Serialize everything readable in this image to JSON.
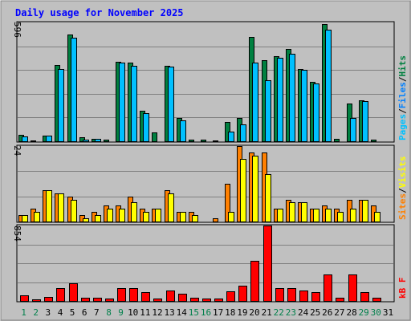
{
  "title": "Daily usage for November 2025",
  "colors": {
    "background": "#c0c0c0",
    "frame_light": "#ffffff",
    "frame_dark": "#808080",
    "gridline": "#808080",
    "title": "#0000ff",
    "hits": "#008040",
    "files": "#00c0ff",
    "pages": "#00c0ff",
    "sites": "#ff8000",
    "visits": "#ffff00",
    "kbytes": "#ff0000",
    "weekday_label": "#000000",
    "weekend_label": "#00804b"
  },
  "legend": {
    "top": {
      "pages": "Pages",
      "sep1": "/",
      "files": "Files",
      "sep2": "/",
      "hits": "Hits"
    },
    "middle": {
      "sites": "Sites",
      "sep": "/",
      "visits": "Visits"
    },
    "bottom": {
      "kbytes": "kB F"
    }
  },
  "chart_data": {
    "type": "bar",
    "title": "Daily usage for November 2025",
    "categories": [
      "1",
      "2",
      "3",
      "4",
      "5",
      "6",
      "7",
      "8",
      "9",
      "10",
      "11",
      "12",
      "13",
      "14",
      "15",
      "16",
      "17",
      "18",
      "19",
      "20",
      "21",
      "22",
      "23",
      "24",
      "25",
      "26",
      "27",
      "28",
      "29",
      "30",
      "31"
    ],
    "weekend_days": [
      "1",
      "2",
      "8",
      "9",
      "15",
      "16",
      "22",
      "23",
      "29",
      "30"
    ],
    "panels": [
      {
        "name": "top",
        "axis_max_label": "596",
        "ymax": 596,
        "series": [
          {
            "name": "Hits",
            "color": "#008040",
            "values": [
              32,
              4,
              28,
              384,
              535,
              20,
              14,
              8,
              400,
              395,
              153,
              45,
              380,
              118,
              7,
              7,
              4,
              95,
              115,
              525,
              405,
              428,
              465,
              362,
              298,
              586,
              14,
              188,
              205,
              7,
              0
            ]
          },
          {
            "name": "Files",
            "color": "#00c0ff",
            "values": [
              26,
              0,
              28,
              362,
              520,
              7,
              12,
              0,
              395,
              378,
              140,
              0,
              375,
              105,
              0,
              0,
              0,
              48,
              85,
              395,
              305,
              420,
              440,
              360,
              290,
              560,
              0,
              118,
              200,
              0,
              0
            ]
          }
        ]
      },
      {
        "name": "middle",
        "axis_max_label": "24",
        "ymax": 24,
        "series": [
          {
            "name": "Sites",
            "color": "#ff8000",
            "values": [
              2,
              4,
              10,
              9,
              8,
              2,
              3,
              5,
              5,
              8,
              4,
              4,
              10,
              3,
              3,
              0,
              1,
              12,
              24,
              22,
              22,
              4,
              7,
              6,
              4,
              5,
              4,
              7,
              7,
              5,
              0
            ]
          },
          {
            "name": "Visits",
            "color": "#ffff00",
            "values": [
              2,
              3,
              10,
              9,
              7,
              1,
              2,
              4,
              4,
              6,
              3,
              4,
              9,
              3,
              2,
              0,
              0,
              3,
              20,
              21,
              15,
              4,
              6,
              6,
              4,
              4,
              3,
              4,
              7,
              3,
              0
            ]
          }
        ]
      },
      {
        "name": "bottom",
        "axis_max_label": "854",
        "ymax": 854,
        "series": [
          {
            "name": "kB F",
            "color": "#ff0000",
            "values": [
              60,
              20,
              45,
              145,
              200,
              35,
              35,
              25,
              145,
              145,
              100,
              30,
              120,
              80,
              40,
              30,
              25,
              110,
              175,
              450,
              854,
              145,
              145,
              120,
              100,
              300,
              40,
              300,
              100,
              40,
              0
            ]
          }
        ]
      }
    ]
  }
}
